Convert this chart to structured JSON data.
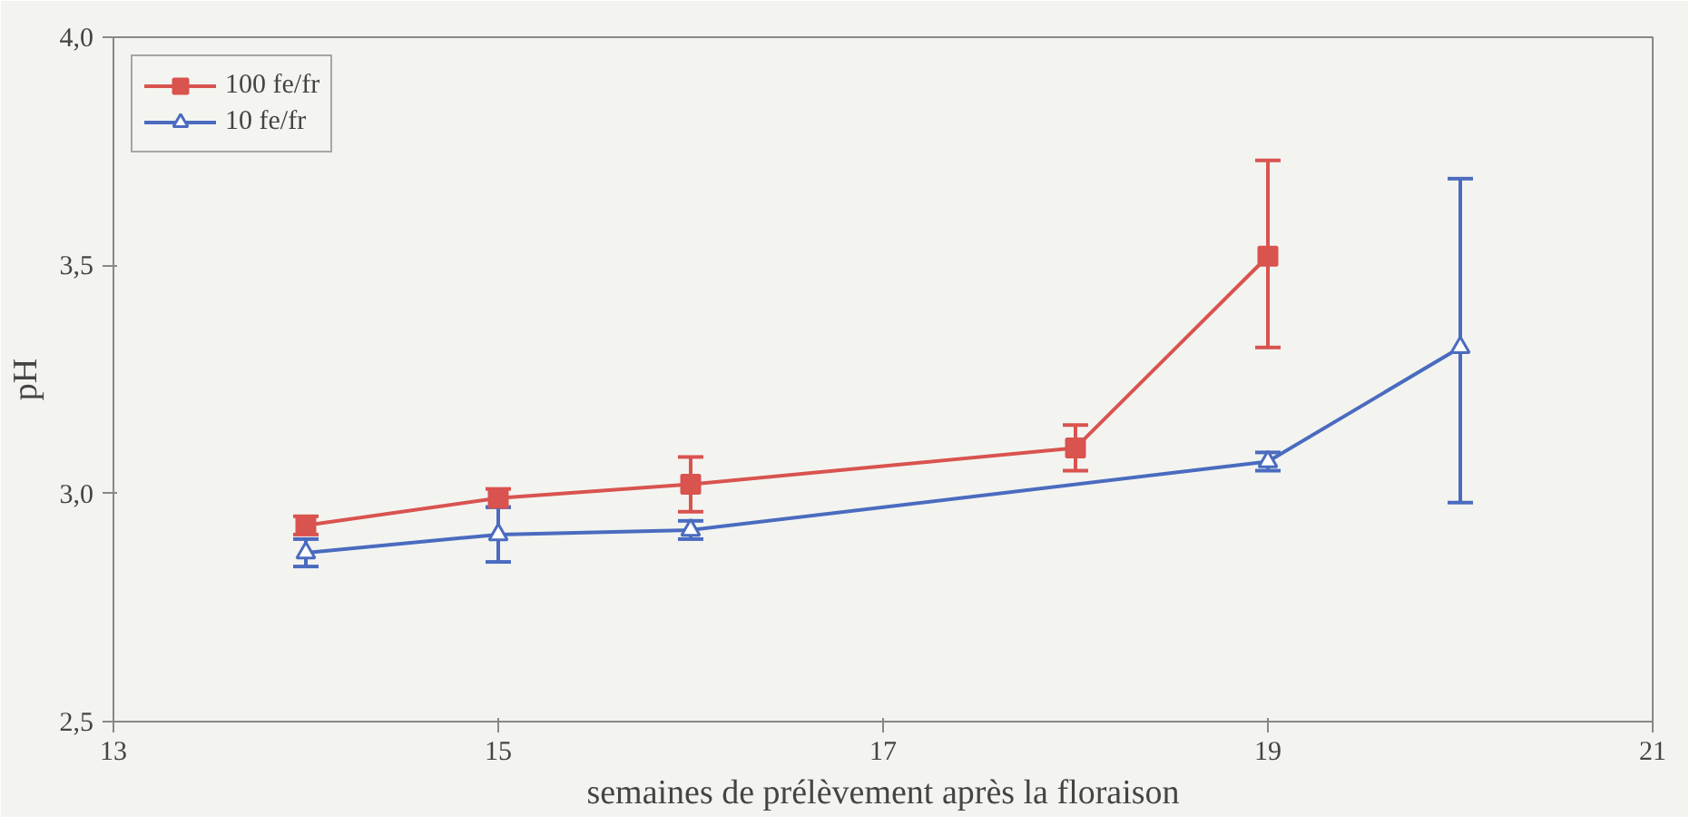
{
  "chart_data": {
    "type": "line",
    "xlabel": "semaines de prélèvement après la floraison",
    "ylabel": "pH",
    "xlim": [
      13,
      21
    ],
    "xticks": [
      13,
      15,
      17,
      19,
      21
    ],
    "ylim": [
      2.5,
      4.0
    ],
    "yticks": [
      {
        "value": 2.5,
        "label": "2,5"
      },
      {
        "value": 3.0,
        "label": "3,0"
      },
      {
        "value": 3.5,
        "label": "3,5"
      },
      {
        "value": 4.0,
        "label": "4,0"
      }
    ],
    "grid": false,
    "legend": "top left",
    "line_style": "solid",
    "series": [
      {
        "name": "100 fe/fr",
        "color": "#d9534f",
        "marker": "square",
        "x": [
          14,
          15,
          16,
          18,
          19
        ],
        "values": [
          2.93,
          2.99,
          3.02,
          3.1,
          3.52
        ],
        "errors": [
          0.02,
          0.02,
          0.06,
          0.05,
          [
            3.32,
            3.73
          ]
        ]
      },
      {
        "name": "10 fe/fr",
        "color": "#4a6bbf",
        "marker": "triangle",
        "x": [
          14,
          15,
          16,
          19,
          20
        ],
        "values": [
          2.87,
          2.91,
          2.92,
          3.07,
          3.32
        ],
        "errors": [
          0.03,
          0.06,
          0.02,
          0.02,
          [
            2.98,
            3.69
          ]
        ]
      }
    ]
  }
}
